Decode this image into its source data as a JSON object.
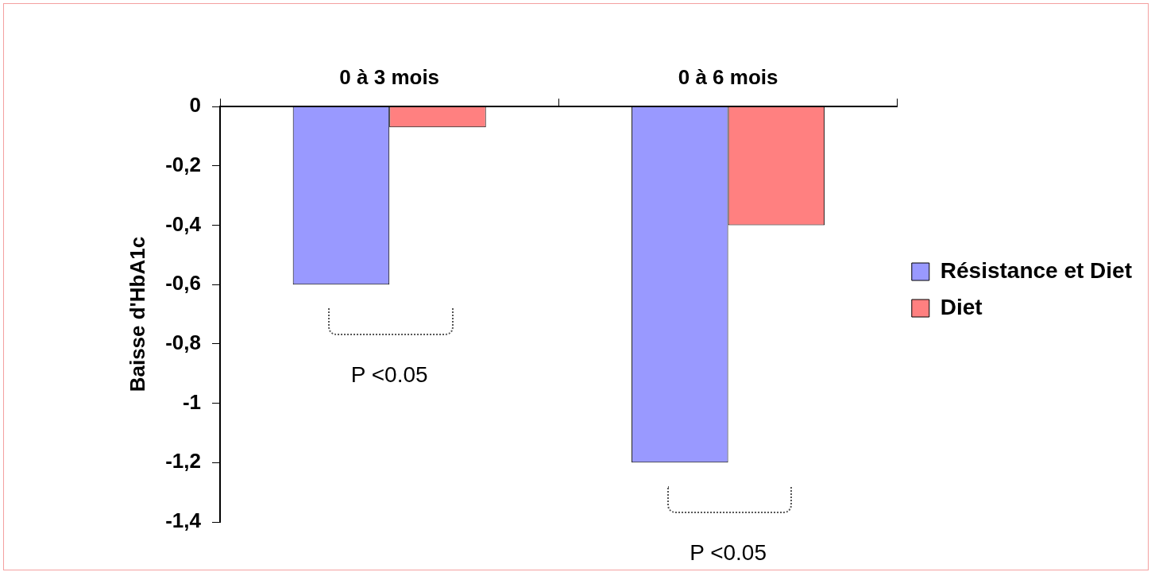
{
  "chart_data": {
    "type": "bar",
    "categories": [
      "0 à 3 mois",
      "0 à 6 mois"
    ],
    "series": [
      {
        "name": "Résistance et Diet",
        "color": "#9999ff",
        "values": [
          -0.6,
          -1.2
        ]
      },
      {
        "name": "Diet",
        "color": "#ff8080",
        "values": [
          -0.07,
          -0.4
        ]
      }
    ],
    "ylabel": "Baisse d'HbA1c",
    "ylim": [
      -1.4,
      0
    ],
    "yticks": [
      0,
      {
        "value": -0.2,
        "label": "-0,2"
      },
      {
        "value": -0.4,
        "label": "-0,4"
      },
      {
        "value": -0.6,
        "label": "-0,6"
      },
      {
        "value": -0.8,
        "label": "-0,8"
      },
      -1,
      {
        "value": -1.2,
        "label": "-1,2"
      },
      {
        "value": -1.4,
        "label": "-1,4"
      }
    ],
    "annotations": [
      "P <0.05",
      "P <0.05"
    ],
    "grid": false,
    "legend": "right"
  }
}
